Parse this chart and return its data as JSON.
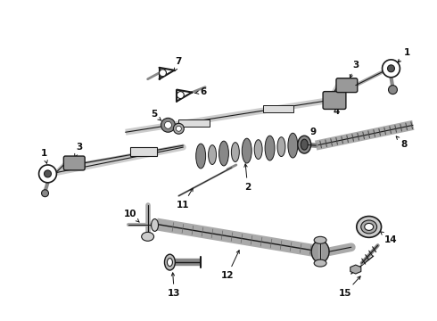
{
  "bg_color": "#ffffff",
  "fig_width": 4.9,
  "fig_height": 3.6,
  "dpi": 100,
  "line_color": "#1a1a1a",
  "gray1": "#aaaaaa",
  "gray2": "#888888",
  "gray3": "#cccccc"
}
